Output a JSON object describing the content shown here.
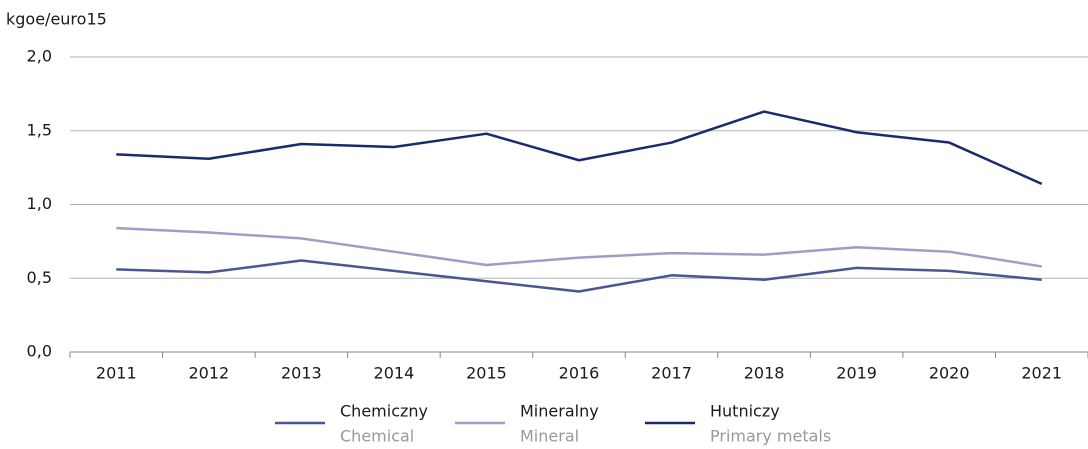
{
  "chart_data": {
    "type": "line",
    "y_axis_label": "kgoe/euro15",
    "categories": [
      "2011",
      "2012",
      "2013",
      "2014",
      "2015",
      "2016",
      "2017",
      "2018",
      "2019",
      "2020",
      "2021"
    ],
    "series": [
      {
        "name": "Chemiczny",
        "name_en": "Chemical",
        "color": "#4a5591",
        "values": [
          0.56,
          0.54,
          0.62,
          0.55,
          0.48,
          0.41,
          0.52,
          0.49,
          0.57,
          0.55,
          0.49
        ]
      },
      {
        "name": "Mineralny",
        "name_en": "Mineral",
        "color": "#a09cc6",
        "values": [
          0.84,
          0.81,
          0.77,
          0.68,
          0.59,
          0.64,
          0.67,
          0.66,
          0.71,
          0.68,
          0.58
        ]
      },
      {
        "name": "Hutniczy",
        "name_en": "Primary metals",
        "color": "#1b2a6b",
        "values": [
          1.34,
          1.31,
          1.41,
          1.39,
          1.48,
          1.3,
          1.42,
          1.63,
          1.49,
          1.42,
          1.14
        ]
      }
    ],
    "ylim": [
      0,
      2
    ],
    "yticks": [
      {
        "value": 0,
        "label": "0,0"
      },
      {
        "value": 0.5,
        "label": "0,5"
      },
      {
        "value": 1,
        "label": "1,0"
      },
      {
        "value": 1.5,
        "label": "1,5"
      },
      {
        "value": 2,
        "label": "2,0"
      }
    ],
    "grid": true,
    "legend": "bottom"
  }
}
